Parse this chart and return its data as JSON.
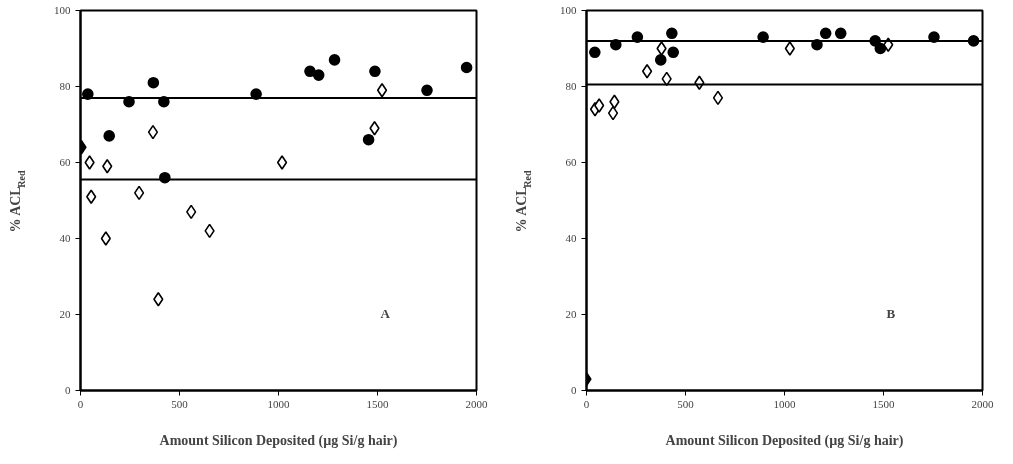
{
  "chart_data": [
    {
      "type": "scatter",
      "xlabel": "Amount Silicon Deposited (µg Si/g hair)",
      "ylabel": "% ACL$_{Red}$",
      "xlim": [
        0,
        2000
      ],
      "xticks": [
        0,
        500,
        1000,
        1500,
        2000
      ],
      "ylim": [
        0,
        100
      ],
      "yticks": [
        0,
        20,
        40,
        60,
        80,
        100
      ],
      "grid": false,
      "series": [
        {
          "color": "#000000",
          "marker": "circle",
          "x": [
            37,
            145,
            245,
            368,
            421,
            426,
            887,
            1159,
            1203,
            1283,
            1455,
            1487,
            1750,
            1950
          ],
          "values": [
            78,
            67,
            76,
            81,
            76,
            56,
            78,
            84,
            83,
            87,
            66,
            84,
            79,
            85
          ]
        },
        {
          "color": "#000000",
          "marker": "diamond",
          "x": [
            5
          ],
          "values": [
            64
          ]
        },
        {
          "color": "#ffffff",
          "marker": "diamond",
          "x": [
            46,
            54,
            135,
            128,
            296,
            366,
            559,
            652,
            393,
            1018,
            1485,
            1523
          ],
          "values": [
            60,
            51,
            59,
            40,
            52,
            68,
            47,
            42,
            24,
            60,
            69,
            79
          ]
        }
      ],
      "ref_lines": [
        {
          "axis": "y",
          "value": 77,
          "color": "#000000"
        },
        {
          "axis": "y",
          "value": 55.5,
          "color": "#000000"
        }
      ],
      "annotations": [
        "A"
      ]
    },
    {
      "type": "scatter",
      "xlabel": "Amount Silicon Deposited (µg Si/g hair)",
      "ylabel": "% ACL$_{Red}$",
      "xlim": [
        0,
        2000
      ],
      "xticks": [
        0,
        500,
        1000,
        1500,
        2000
      ],
      "ylim": [
        0,
        100
      ],
      "yticks": [
        0,
        20,
        40,
        60,
        80,
        100
      ],
      "grid": false,
      "series": [
        {
          "color": "#000000",
          "marker": "circle",
          "x": [
            42,
            148,
            257,
            375,
            431,
            438,
            892,
            1164,
            1208,
            1284,
            1458,
            1484,
            1755,
            1955
          ],
          "values": [
            89,
            91,
            93,
            87,
            94,
            89,
            93,
            91,
            94,
            94,
            92,
            90,
            93,
            92
          ]
        },
        {
          "color": "#000000",
          "marker": "diamond",
          "x": [
            0
          ],
          "values": [
            3
          ]
        },
        {
          "color": "#ffffff",
          "marker": "diamond",
          "x": [
            43,
            64,
            134,
            141,
            306,
            379,
            405,
            570,
            664,
            1027,
            1524
          ],
          "values": [
            74,
            75,
            73,
            76,
            84,
            90,
            82,
            81,
            77,
            90,
            91
          ]
        }
      ],
      "ref_lines": [
        {
          "axis": "y",
          "value": 92,
          "color": "#000000"
        },
        {
          "axis": "y",
          "value": 80.5,
          "color": "#000000"
        }
      ],
      "annotations": [
        "B"
      ]
    }
  ]
}
